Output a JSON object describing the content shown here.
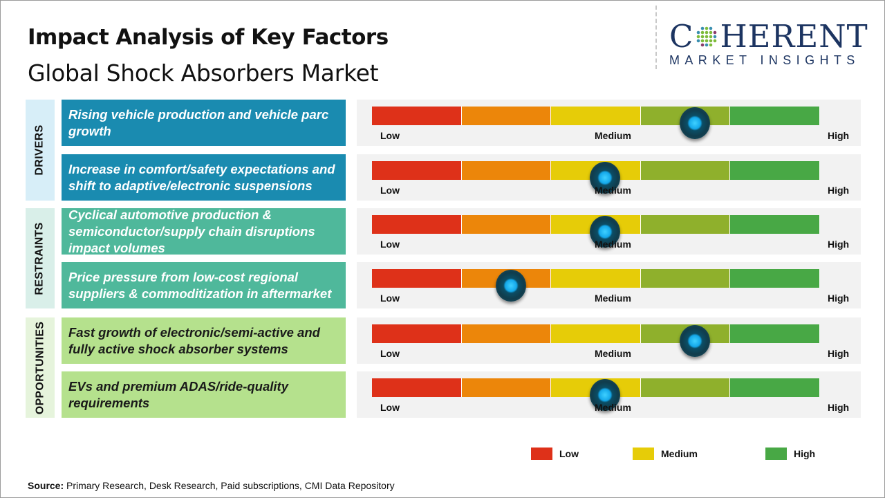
{
  "header": {
    "title": "Impact Analysis of Key Factors",
    "subtitle": "Global Shock Absorbers Market"
  },
  "logo": {
    "text_main_left": "C",
    "text_main_right": "HERENT",
    "text_sub": "MARKET INSIGHTS",
    "brand_color": "#1c3461"
  },
  "scale": {
    "low": "Low",
    "medium": "Medium",
    "high": "High",
    "segment_colors": [
      "#de3119",
      "#ec860a",
      "#e6cc08",
      "#8fb02c",
      "#48a845"
    ]
  },
  "categories": [
    {
      "label": "DRIVERS",
      "bg": "#d7eef8",
      "box_color": "#1a8bb0",
      "text_color": "#ffffff"
    },
    {
      "label": "RESTRAINTS",
      "bg": "#d9efe9",
      "box_color": "#4fb89b",
      "text_color": "#ffffff"
    },
    {
      "label": "OPPORTUNITIES",
      "bg": "#e6f4dc",
      "box_color": "#b5e18d",
      "text_color": "#1a1a1a"
    }
  ],
  "factors": [
    {
      "category": 0,
      "text": "Rising vehicle production and vehicle parc growth",
      "impact_level_pct": 72
    },
    {
      "category": 0,
      "text": "Increase in comfort/safety expectations and shift to adaptive/electronic suspensions",
      "impact_level_pct": 52
    },
    {
      "category": 1,
      "text": "Cyclical automotive production & semiconductor/supply chain disruptions impact volumes",
      "impact_level_pct": 52
    },
    {
      "category": 1,
      "text": "Price pressure from low-cost regional suppliers & commoditization in aftermarket",
      "impact_level_pct": 31
    },
    {
      "category": 2,
      "text": "Fast growth of electronic/semi-active and fully active shock absorber systems",
      "impact_level_pct": 72
    },
    {
      "category": 2,
      "text": "EVs and premium ADAS/ride-quality requirements",
      "impact_level_pct": 52
    }
  ],
  "legend": [
    {
      "label": "Low",
      "color": "#de3119"
    },
    {
      "label": "Medium",
      "color": "#e6cc08"
    },
    {
      "label": "High",
      "color": "#48a845"
    }
  ],
  "source": {
    "label": "Source:",
    "text": " Primary Research, Desk Research, Paid subscriptions, CMI Data Repository"
  }
}
